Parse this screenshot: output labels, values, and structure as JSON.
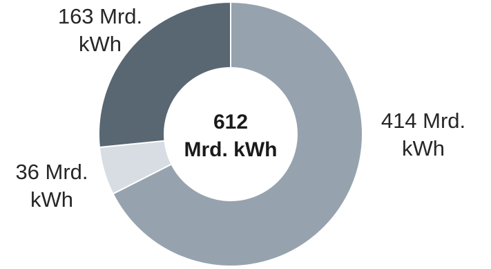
{
  "chart_data": {
    "type": "pie",
    "categories": [
      "",
      "",
      ""
    ],
    "values": [
      414,
      36,
      163
    ],
    "slice_labels": [
      [
        "414 Mrd.",
        "kWh"
      ],
      [
        "36 Mrd.",
        "kWh"
      ],
      [
        "163 Mrd.",
        "kWh"
      ]
    ],
    "colors": [
      "#96a3ae",
      "#d7dde2",
      "#596773"
    ],
    "center_label": [
      "612",
      "Mrd. kWh"
    ],
    "total": 612,
    "title": "",
    "donut": true
  }
}
